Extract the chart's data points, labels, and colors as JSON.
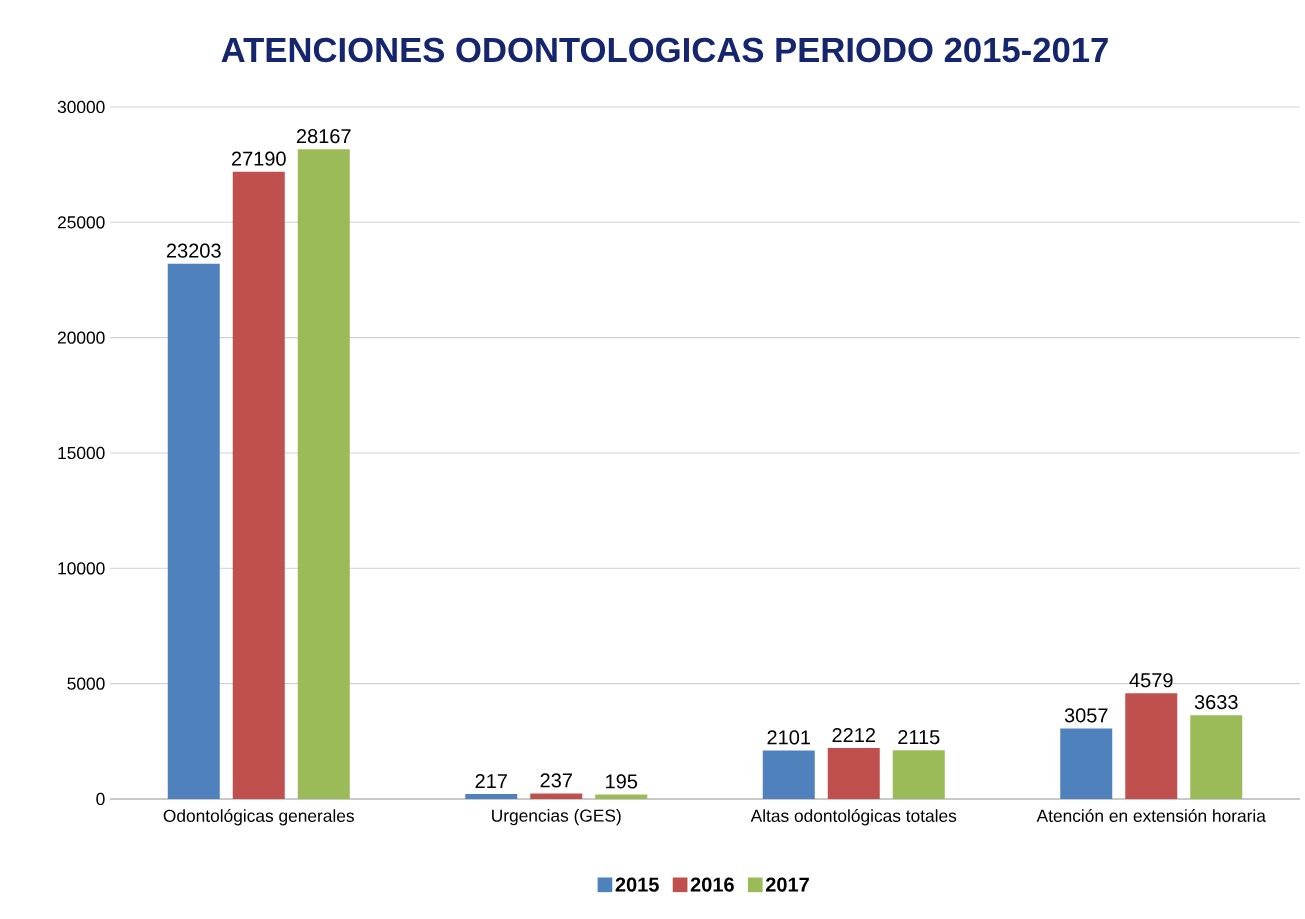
{
  "chart_data": {
    "type": "bar",
    "title": "ATENCIONES ODONTOLOGICAS PERIODO 2015-2017",
    "categories": [
      "Odontológicas generales",
      "Urgencias (GES)",
      "Altas odontológicas totales",
      "Atención en extensión horaria"
    ],
    "series": [
      {
        "name": "2015",
        "color": "#4f81bd",
        "values": [
          23203,
          217,
          2101,
          3057
        ]
      },
      {
        "name": "2016",
        "color": "#c0504d",
        "values": [
          27190,
          237,
          2212,
          4579
        ]
      },
      {
        "name": "2017",
        "color": "#9bbb59",
        "values": [
          28167,
          195,
          2115,
          3633
        ]
      }
    ],
    "ylim": [
      0,
      30000
    ],
    "yticks": [
      0,
      5000,
      10000,
      15000,
      20000,
      25000,
      30000
    ],
    "grid": "y",
    "legend": "bottom",
    "data_labels": true
  }
}
